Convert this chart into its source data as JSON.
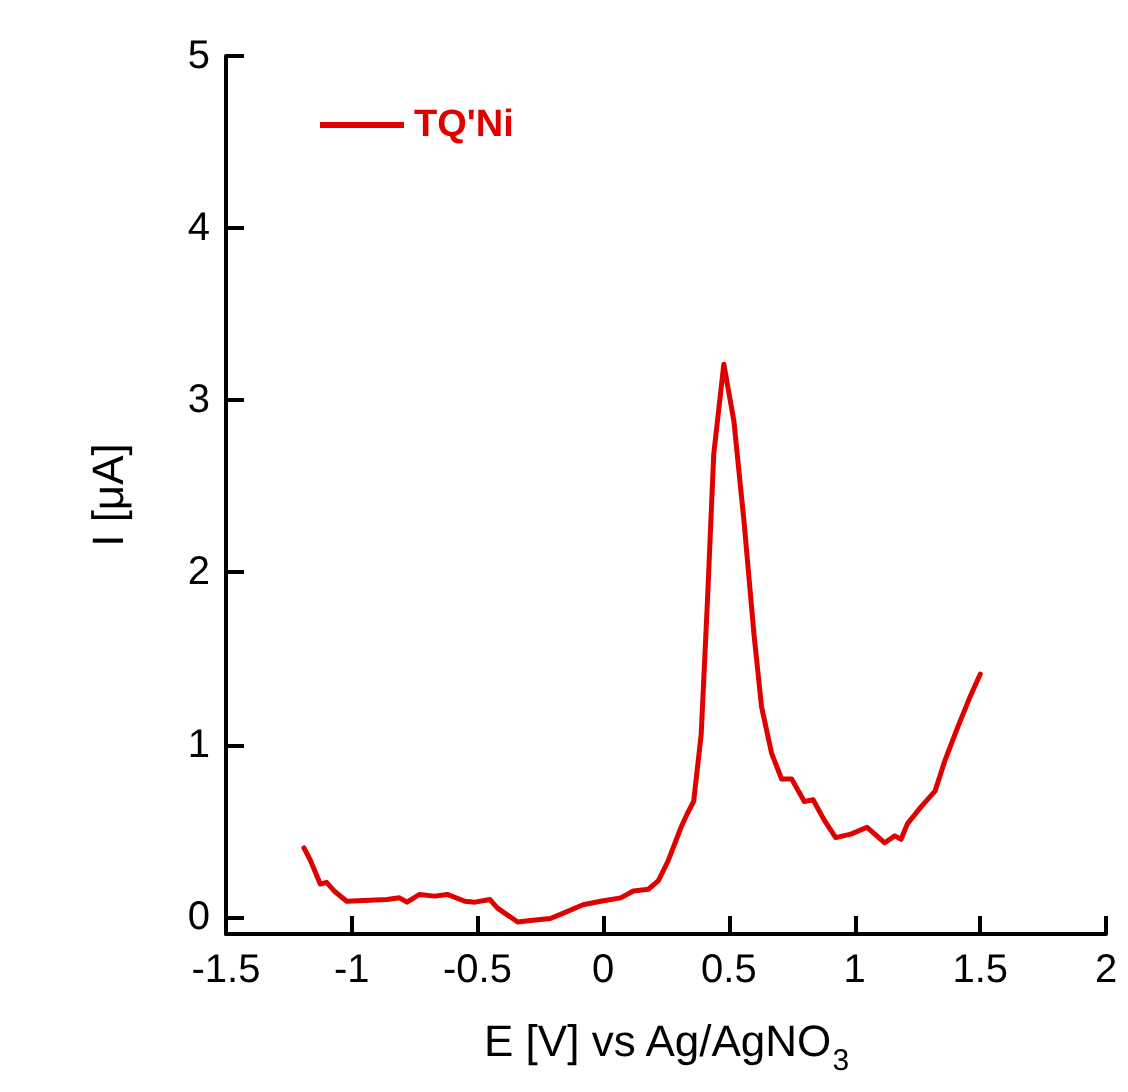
{
  "chart_data": {
    "type": "line",
    "xlabel": "E [V] vs Ag/AgNO$_{3}$",
    "ylabel": "I [μA]",
    "xlim": [
      -1.5,
      2
    ],
    "xticks": [
      -1.5,
      -1,
      -0.5,
      0,
      0.5,
      1,
      1.5,
      2
    ],
    "ylim": [
      -0.1,
      5
    ],
    "yticks": [
      0,
      1,
      2,
      3,
      4,
      5
    ],
    "grid": false,
    "legend": "top left",
    "marker": "none",
    "line_style": "solid",
    "x": [
      -1.19,
      -1.165,
      -1.125,
      -1.1,
      -1.07,
      -1.02,
      -0.86,
      -0.81,
      -0.78,
      -0.73,
      -0.67,
      -0.62,
      -0.55,
      -0.51,
      -0.45,
      -0.42,
      -0.38,
      -0.34,
      -0.28,
      -0.21,
      -0.16,
      -0.08,
      -0.01,
      0.07,
      0.12,
      0.18,
      0.22,
      0.26,
      0.31,
      0.335,
      0.36,
      0.39,
      0.415,
      0.44,
      0.48,
      0.52,
      0.56,
      0.6,
      0.63,
      0.67,
      0.71,
      0.75,
      0.8,
      0.835,
      0.88,
      0.925,
      0.985,
      1.05,
      1.12,
      1.16,
      1.185,
      1.21,
      1.265,
      1.32,
      1.36,
      1.41,
      1.46,
      1.5
    ],
    "series": [
      {
        "name": "TQ'Ni",
        "color": "#e00000",
        "values": [
          0.4,
          0.33,
          0.19,
          0.2,
          0.15,
          0.09,
          0.1,
          0.11,
          0.085,
          0.13,
          0.12,
          0.13,
          0.09,
          0.085,
          0.1,
          0.05,
          0.01,
          -0.03,
          -0.02,
          -0.01,
          0.02,
          0.07,
          0.09,
          0.11,
          0.15,
          0.16,
          0.21,
          0.33,
          0.52,
          0.6,
          0.67,
          1.06,
          1.84,
          2.69,
          3.21,
          2.88,
          2.3,
          1.64,
          1.22,
          0.95,
          0.8,
          0.8,
          0.67,
          0.68,
          0.56,
          0.46,
          0.48,
          0.52,
          0.43,
          0.47,
          0.45,
          0.54,
          0.64,
          0.73,
          0.91,
          1.1,
          1.28,
          1.41
        ]
      }
    ]
  }
}
